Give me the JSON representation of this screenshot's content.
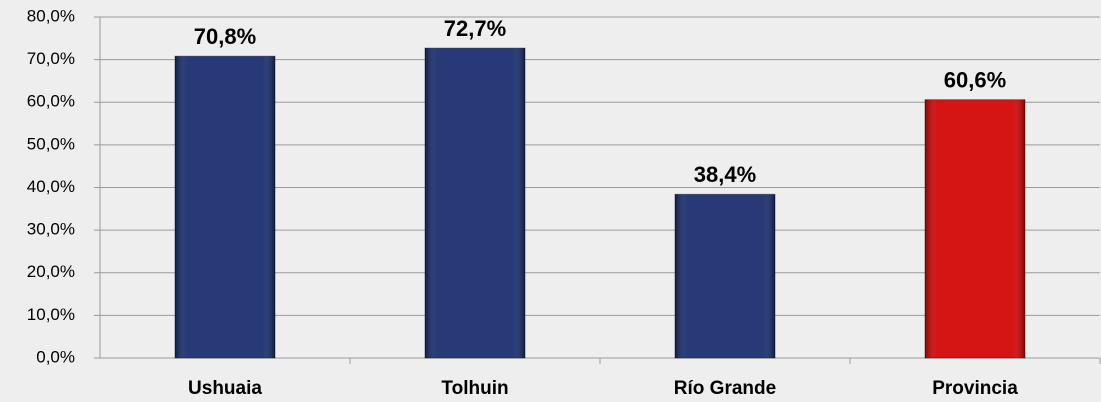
{
  "chart_data": {
    "type": "bar",
    "categories": [
      "Ushuaia",
      "Tolhuin",
      "Río Grande",
      "Provincia"
    ],
    "values": [
      70.8,
      72.7,
      38.4,
      60.6
    ],
    "value_labels": [
      "70,8%",
      "72,7%",
      "38,4%",
      "60,6%"
    ],
    "colors": [
      "#14296b",
      "#14296b",
      "#14296b",
      "#d10000"
    ],
    "ylim": [
      0,
      80
    ],
    "yticks": [
      {
        "value": 0,
        "label": "0,0%"
      },
      {
        "value": 10,
        "label": "10,0%"
      },
      {
        "value": 20,
        "label": "20,0%"
      },
      {
        "value": 30,
        "label": "30,0%"
      },
      {
        "value": 40,
        "label": "40,0%"
      },
      {
        "value": 50,
        "label": "50,0%"
      },
      {
        "value": 60,
        "label": "60,0%"
      },
      {
        "value": 70,
        "label": "70,0%"
      },
      {
        "value": 80,
        "label": "80,0%"
      }
    ],
    "grid": true
  }
}
